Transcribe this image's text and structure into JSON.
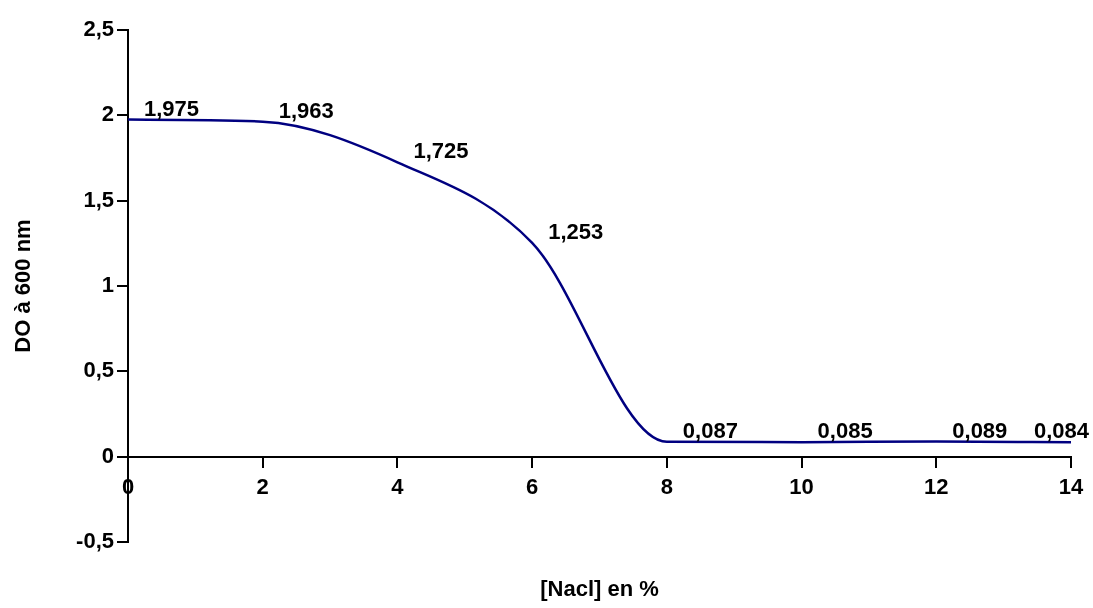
{
  "chart_data": {
    "type": "line",
    "xlabel": "[Nacl] en %",
    "ylabel": "DO à 600 nm",
    "x": [
      0,
      2,
      4,
      6,
      8,
      10,
      12,
      14
    ],
    "series": [
      {
        "color": "#000080",
        "values": [
          1.975,
          1.963,
          1.725,
          1.253,
          0.087,
          0.085,
          0.089,
          0.084
        ],
        "value_labels": [
          "1,975",
          "1,963",
          "1,725",
          "1,253",
          "0,087",
          "0,085",
          "0,089",
          "0,084"
        ]
      }
    ],
    "xlim": [
      0,
      14
    ],
    "xticks": [
      0,
      2,
      4,
      6,
      8,
      10,
      12,
      14
    ],
    "ylim": [
      -0.5,
      2.5
    ],
    "yticks": [
      {
        "value": -0.5,
        "label": "-0,5"
      },
      0,
      {
        "value": 0.5,
        "label": "0,5"
      },
      1,
      {
        "value": 1.5,
        "label": "1,5"
      },
      2,
      {
        "value": 2.5,
        "label": "2,5"
      }
    ],
    "grid": false,
    "legend": false,
    "marker": "none",
    "line_style": "solid"
  }
}
